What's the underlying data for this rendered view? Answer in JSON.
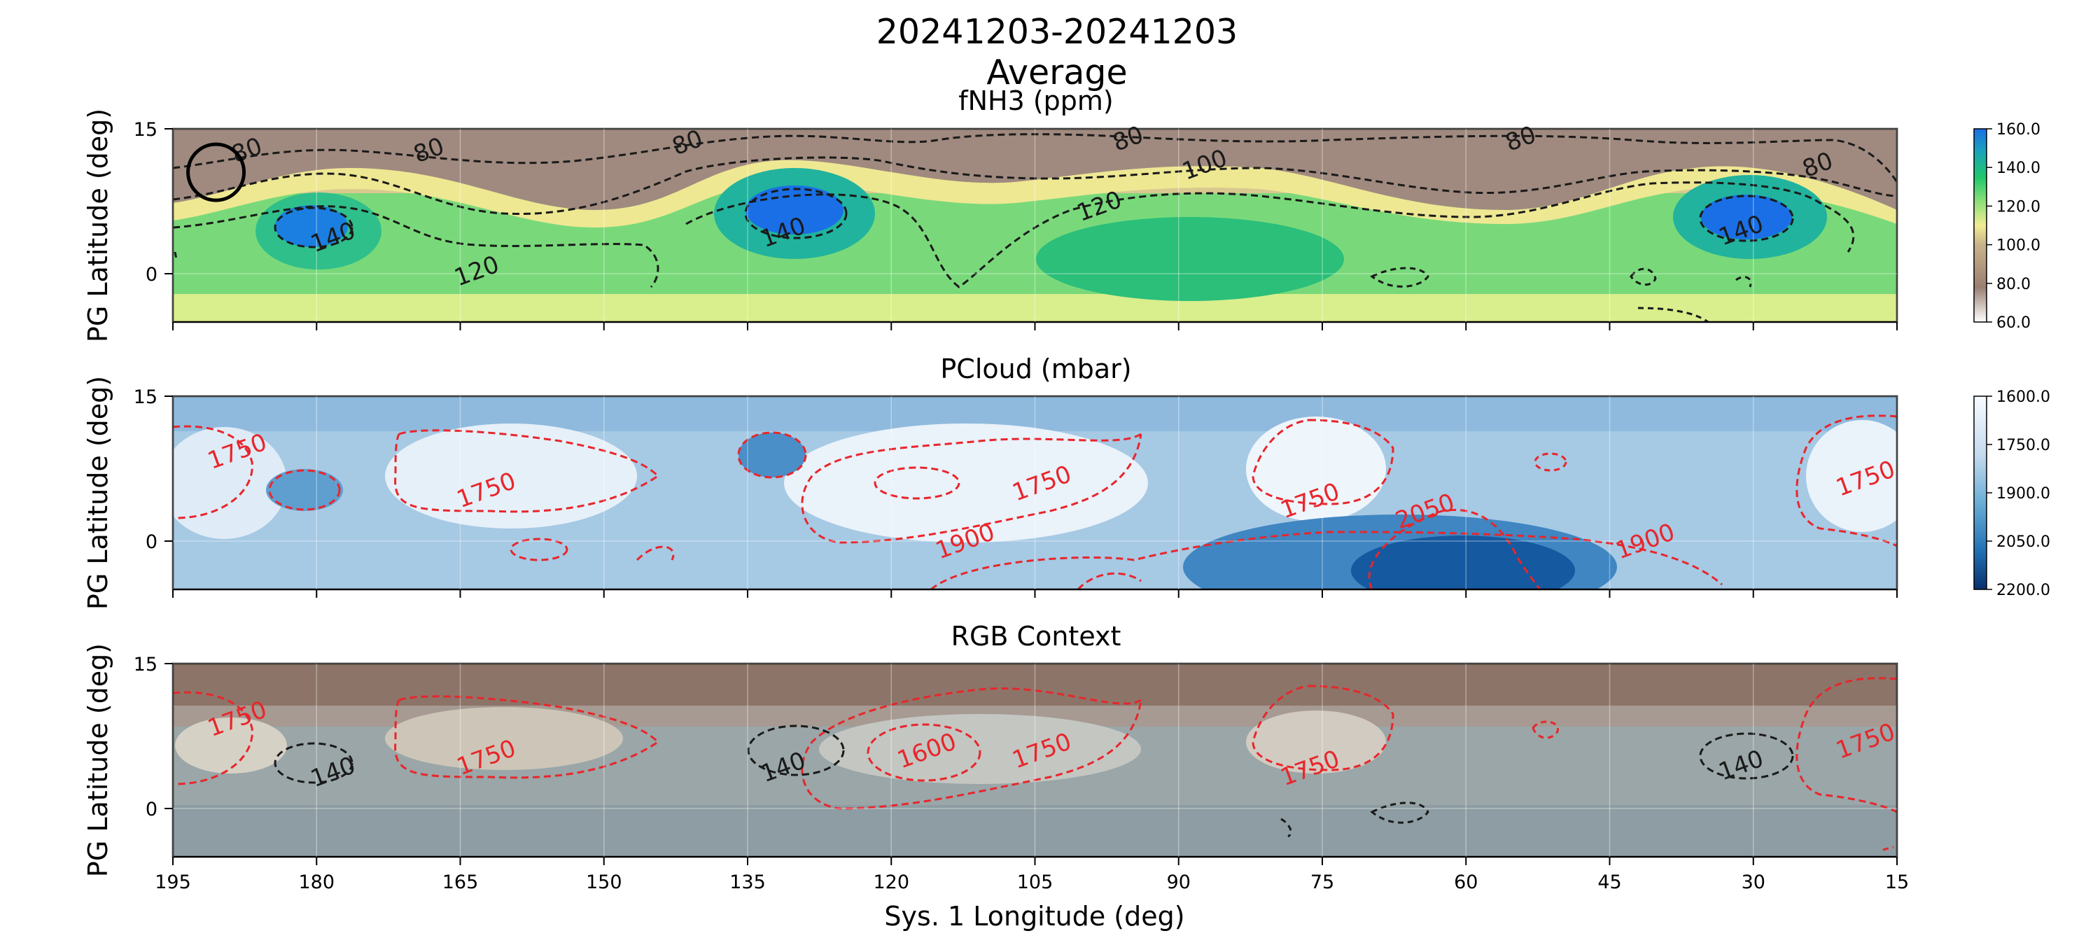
{
  "figure": {
    "title_line1": "20241203-20241203",
    "title_line2": "Average",
    "xlabel": "Sys. 1 Longitude (deg)"
  },
  "chart_data": [
    {
      "type": "heatmap",
      "title": "fNH3 (ppm)",
      "ylabel": "PG Latitude (deg)",
      "xlabel": "",
      "xlim": [
        195,
        15
      ],
      "ylim": [
        -5,
        15
      ],
      "x_ticks": [
        195,
        180,
        165,
        150,
        135,
        120,
        105,
        90,
        75,
        60,
        45,
        30,
        15
      ],
      "y_ticks": [
        0,
        15
      ],
      "grid": true,
      "colormap": "terrain_r",
      "color_range": [
        60,
        160
      ],
      "colorbar_ticks": [
        "60.0",
        "80.0",
        "100.0",
        "120.0",
        "140.0",
        "160.0"
      ],
      "contour_color": "#1a1a1a",
      "contour_levels": [
        80,
        100,
        120,
        140
      ],
      "contour_labels": [
        {
          "text": "80",
          "x": 187,
          "y": 12
        },
        {
          "text": "80",
          "x": 168,
          "y": 12
        },
        {
          "text": "80",
          "x": 141,
          "y": 12.8
        },
        {
          "text": "80",
          "x": 95,
          "y": 13.2
        },
        {
          "text": "80",
          "x": 54,
          "y": 13.2
        },
        {
          "text": "80",
          "x": 23,
          "y": 10.5
        },
        {
          "text": "100",
          "x": 87,
          "y": 10.5
        },
        {
          "text": "120",
          "x": 98,
          "y": 6.2
        },
        {
          "text": "120",
          "x": 163,
          "y": -0.5
        },
        {
          "text": "140",
          "x": 178,
          "y": 3
        },
        {
          "text": "140",
          "x": 131,
          "y": 3.5
        },
        {
          "text": "140",
          "x": 31,
          "y": 3.7
        }
      ],
      "annotation": {
        "shape": "circle",
        "x": 190.5,
        "y": 10.5
      }
    },
    {
      "type": "heatmap",
      "title": "PCloud (mbar)",
      "ylabel": "PG Latitude (deg)",
      "xlabel": "",
      "xlim": [
        195,
        15
      ],
      "ylim": [
        -5,
        15
      ],
      "x_ticks": [
        195,
        180,
        165,
        150,
        135,
        120,
        105,
        90,
        75,
        60,
        45,
        30,
        15
      ],
      "y_ticks": [
        0,
        15
      ],
      "grid": true,
      "colormap": "Blues",
      "color_range": [
        1600,
        2200
      ],
      "colorbar_ticks": [
        "1600.0",
        "1750.0",
        "1900.0",
        "2050.0",
        "2200.0"
      ],
      "contour_color": "#e8262b",
      "contour_levels": [
        1750,
        1900,
        2050
      ],
      "contour_labels": [
        {
          "text": "1750",
          "x": 188,
          "y": 8.5
        },
        {
          "text": "1750",
          "x": 162,
          "y": 4.5
        },
        {
          "text": "1750",
          "x": 104,
          "y": 5.2
        },
        {
          "text": "1750",
          "x": 76,
          "y": 3.4
        },
        {
          "text": "1750",
          "x": 18,
          "y": 5.7
        },
        {
          "text": "1900",
          "x": 112,
          "y": -0.8
        },
        {
          "text": "1900",
          "x": 41,
          "y": -0.8
        },
        {
          "text": "2050",
          "x": 64,
          "y": 2.3
        }
      ]
    },
    {
      "type": "heatmap",
      "title": "RGB Context",
      "ylabel": "PG Latitude (deg)",
      "xlabel": "Sys. 1 Longitude (deg)",
      "xlim": [
        195,
        15
      ],
      "ylim": [
        -5,
        15
      ],
      "x_ticks": [
        195,
        180,
        165,
        150,
        135,
        120,
        105,
        90,
        75,
        60,
        45,
        30,
        15
      ],
      "y_ticks": [
        0,
        15
      ],
      "grid": true,
      "contour_labels": [
        {
          "text": "1750",
          "x": 188,
          "y": 8.5
        },
        {
          "text": "1750",
          "x": 162,
          "y": 4.5
        },
        {
          "text": "1750",
          "x": 104,
          "y": 5.2
        },
        {
          "text": "1750",
          "x": 76,
          "y": 3.4
        },
        {
          "text": "1750",
          "x": 18,
          "y": 6.2
        },
        {
          "text": "1600",
          "x": 116,
          "y": 5.2
        },
        {
          "text": "140",
          "x": 178,
          "y": 3
        },
        {
          "text": "140",
          "x": 131,
          "y": 3.5
        },
        {
          "text": "140",
          "x": 31,
          "y": 3.7
        }
      ],
      "contour_label_colors": {
        "1750": "#e8262b",
        "1600": "#e8262b",
        "140": "#1a1a1a"
      }
    }
  ]
}
